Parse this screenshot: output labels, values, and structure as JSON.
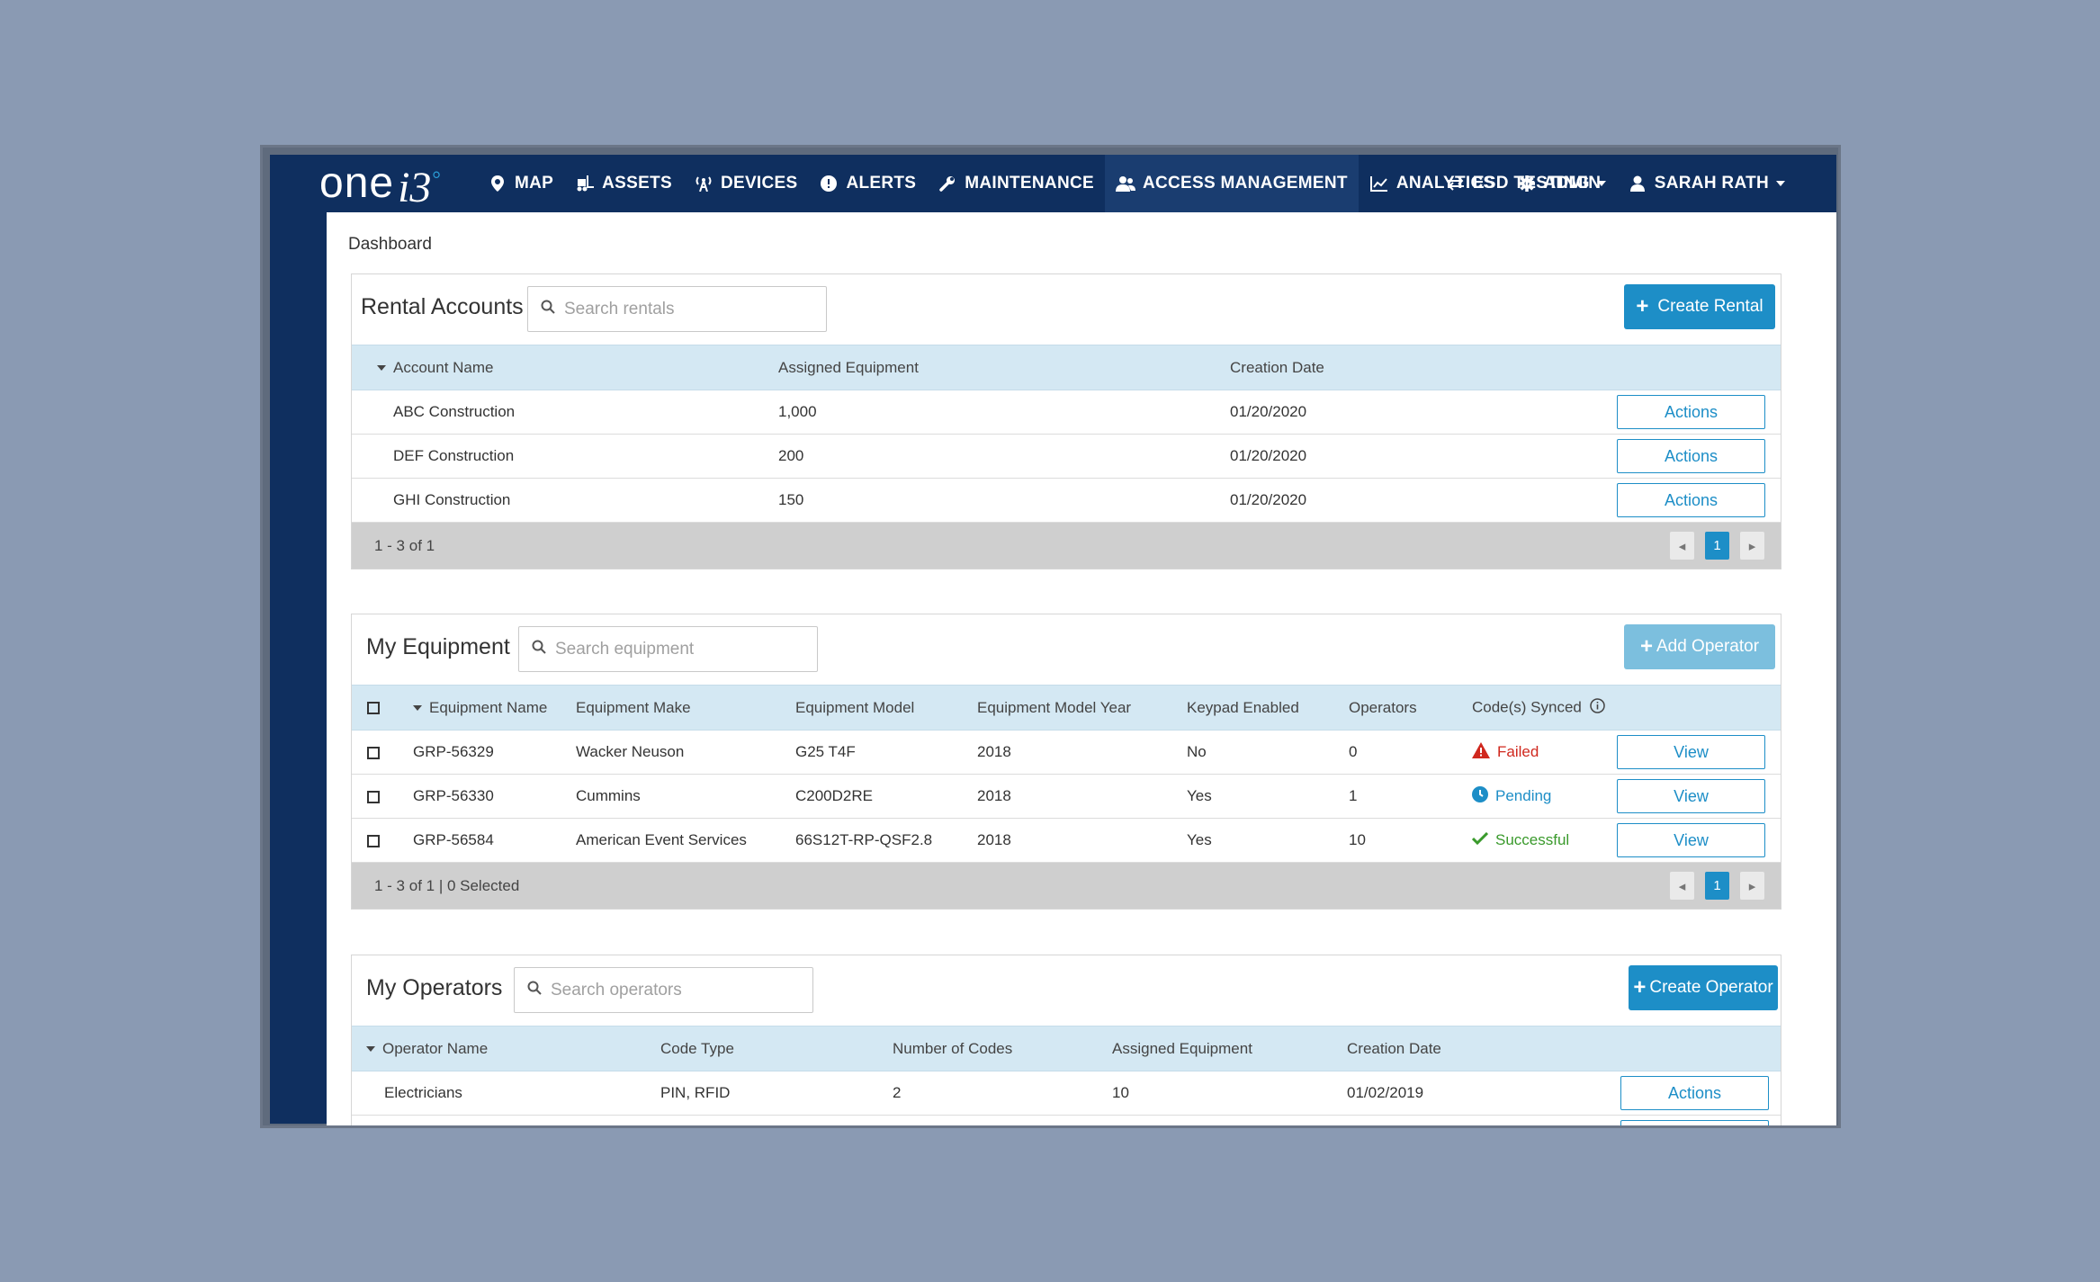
{
  "nav": {
    "logo_text": "one",
    "logo_mark": "i3",
    "items": [
      {
        "label": "MAP",
        "icon": "map-pin-icon"
      },
      {
        "label": "ASSETS",
        "icon": "forklift-icon"
      },
      {
        "label": "DEVICES",
        "icon": "antenna-icon"
      },
      {
        "label": "ALERTS",
        "icon": "alert-circle-icon"
      },
      {
        "label": "MAINTENANCE",
        "icon": "wrench-icon"
      },
      {
        "label": "ACCESS MANAGEMENT",
        "icon": "users-icon",
        "active": true
      },
      {
        "label": "ANALYTICS",
        "icon": "chart-icon"
      },
      {
        "label": "ADMIN",
        "icon": "gear-icon"
      }
    ],
    "org": "ESD TESTING",
    "user": "SARAH RATH"
  },
  "breadcrumb": "Dashboard",
  "rentals": {
    "title": "Rental Accounts",
    "search_placeholder": "Search rentals",
    "create_label": "Create Rental",
    "columns": [
      "Account Name",
      "Assigned Equipment",
      "Creation Date"
    ],
    "rows": [
      {
        "name": "ABC Construction",
        "equipment": "1,000",
        "date": "01/20/2020",
        "action": "Actions"
      },
      {
        "name": "DEF Construction",
        "equipment": "200",
        "date": "01/20/2020",
        "action": "Actions"
      },
      {
        "name": "GHI Construction",
        "equipment": "150",
        "date": "01/20/2020",
        "action": "Actions"
      }
    ],
    "footer": "1 - 3 of 1",
    "page": "1"
  },
  "equipment": {
    "title": "My Equipment",
    "search_placeholder": "Search equipment",
    "add_label": "Add Operator",
    "columns": [
      "Equipment Name",
      "Equipment Make",
      "Equipment Model",
      "Equipment Model Year",
      "Keypad Enabled",
      "Operators",
      "Code(s) Synced"
    ],
    "rows": [
      {
        "name": "GRP-56329",
        "make": "Wacker Neuson",
        "model": "G25 T4F",
        "year": "2018",
        "keypad": "No",
        "operators": "0",
        "status": "Failed",
        "action": "View"
      },
      {
        "name": "GRP-56330",
        "make": "Cummins",
        "model": "C200D2RE",
        "year": "2018",
        "keypad": "Yes",
        "operators": "1",
        "status": "Pending",
        "action": "View"
      },
      {
        "name": "GRP-56584",
        "make": "American Event Services",
        "model": "66S12T-RP-QSF2.8",
        "year": "2018",
        "keypad": "Yes",
        "operators": "10",
        "status": "Successful",
        "action": "View"
      }
    ],
    "footer": "1 - 3 of 1 | 0 Selected",
    "page": "1"
  },
  "operators": {
    "title": "My Operators",
    "search_placeholder": "Search operators",
    "create_label": "Create Operator",
    "columns": [
      "Operator Name",
      "Code Type",
      "Number of Codes",
      "Assigned Equipment",
      "Creation Date"
    ],
    "rows": [
      {
        "name": "Electricians",
        "code_type": "PIN, RFID",
        "codes": "2",
        "equipment": "10",
        "date": "01/02/2019",
        "action": "Actions"
      }
    ]
  },
  "colors": {
    "nav": "#0f2f5f",
    "accent": "#1d8ec7",
    "failed": "#d0281e",
    "success": "#3a9a2c"
  }
}
